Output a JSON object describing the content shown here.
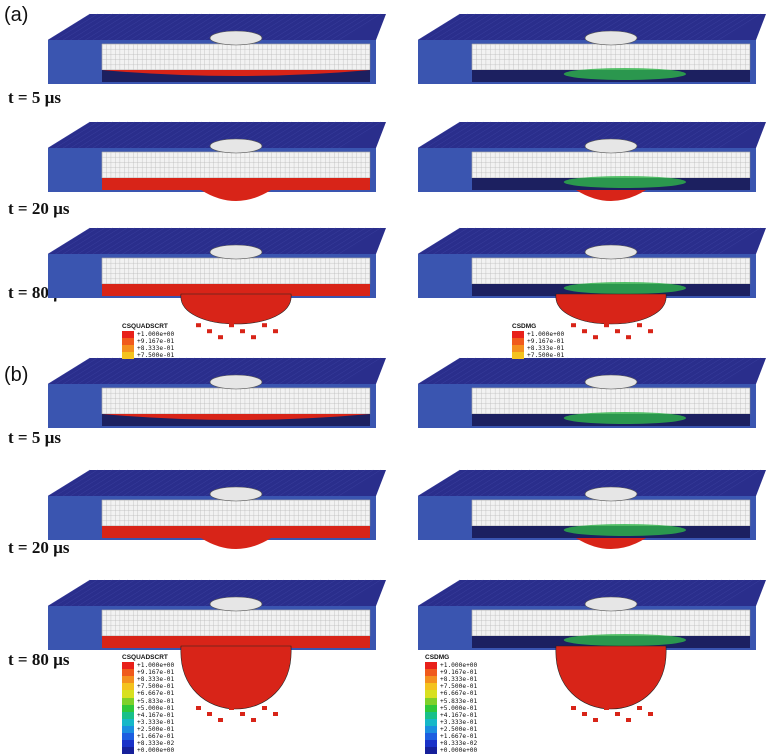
{
  "panels": [
    {
      "label": "(a)"
    },
    {
      "label": "(b)"
    }
  ],
  "times": [
    "t = 5 µs",
    "t = 20 µs",
    "t = 80 µs"
  ],
  "legend_a_left": {
    "title": "CSQUADSCRT",
    "entries": [
      {
        "value": "+1.000e+00",
        "color": "#e8201a"
      },
      {
        "value": "+9.167e-01",
        "color": "#f05a1c"
      },
      {
        "value": "+8.333e-01",
        "color": "#f4901e"
      },
      {
        "value": "+7.500e-01",
        "color": "#f4c21e"
      }
    ]
  },
  "legend_a_right": {
    "title": "CSDMG",
    "entries": [
      {
        "value": "+1.000e+00",
        "color": "#e8201a"
      },
      {
        "value": "+9.167e-01",
        "color": "#f05a1c"
      },
      {
        "value": "+8.333e-01",
        "color": "#f4901e"
      },
      {
        "value": "+7.500e-01",
        "color": "#f4c21e"
      }
    ]
  },
  "legend_b_left": {
    "title": "CSQUADSCRT",
    "entries": [
      {
        "value": "+1.000e+00",
        "color": "#e8201a"
      },
      {
        "value": "+9.167e-01",
        "color": "#f05a1c"
      },
      {
        "value": "+8.333e-01",
        "color": "#f4901e"
      },
      {
        "value": "+7.500e-01",
        "color": "#f4c21e"
      },
      {
        "value": "+6.667e-01",
        "color": "#d8e020"
      },
      {
        "value": "+5.833e-01",
        "color": "#7ed12a"
      },
      {
        "value": "+5.000e-01",
        "color": "#2ec83a"
      },
      {
        "value": "+4.167e-01",
        "color": "#18c08a"
      },
      {
        "value": "+3.333e-01",
        "color": "#16b8c8"
      },
      {
        "value": "+2.500e-01",
        "color": "#1a8ee0"
      },
      {
        "value": "+1.667e-01",
        "color": "#1c5ee0"
      },
      {
        "value": "+8.333e-02",
        "color": "#1a32c8"
      },
      {
        "value": "+0.000e+00",
        "color": "#16209a"
      }
    ]
  },
  "legend_b_right": {
    "title": "CSDMG",
    "entries": [
      {
        "value": "+1.000e+00",
        "color": "#e8201a"
      },
      {
        "value": "+9.167e-01",
        "color": "#f05a1c"
      },
      {
        "value": "+8.333e-01",
        "color": "#f4901e"
      },
      {
        "value": "+7.500e-01",
        "color": "#f4c21e"
      },
      {
        "value": "+6.667e-01",
        "color": "#d8e020"
      },
      {
        "value": "+5.833e-01",
        "color": "#7ed12a"
      },
      {
        "value": "+5.000e-01",
        "color": "#2ec83a"
      },
      {
        "value": "+4.167e-01",
        "color": "#18c08a"
      },
      {
        "value": "+3.333e-01",
        "color": "#16b8c8"
      },
      {
        "value": "+2.500e-01",
        "color": "#1a8ee0"
      },
      {
        "value": "+1.667e-01",
        "color": "#1c5ee0"
      },
      {
        "value": "+8.333e-02",
        "color": "#1a32c8"
      },
      {
        "value": "+0.000e+00",
        "color": "#16209a"
      }
    ]
  },
  "colors": {
    "top_blue": "#2a2e8c",
    "side_blue": "#3a55b0",
    "core": "#f2f2f2",
    "damage_red": "#d82418",
    "damage_green": "#2fb54a",
    "dark_bottom": "#1c2060"
  }
}
